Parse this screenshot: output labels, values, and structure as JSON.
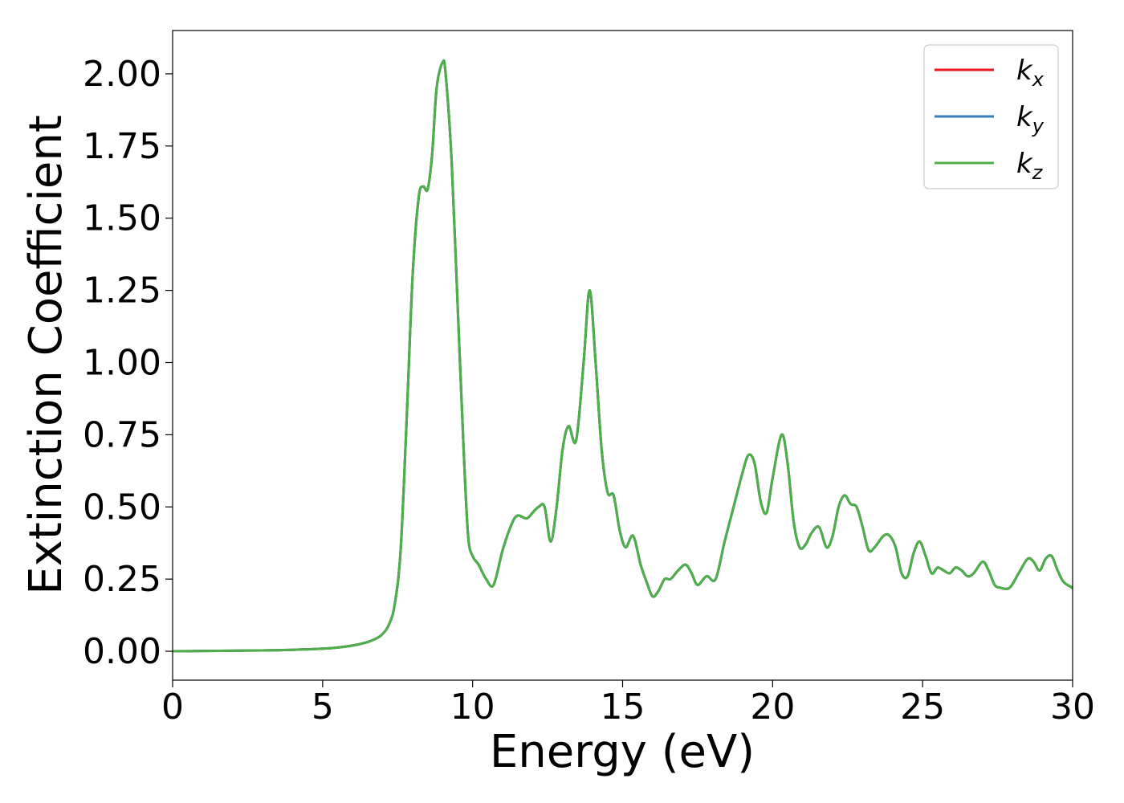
{
  "chart_data": {
    "type": "line",
    "title": "",
    "xlabel": "Energy (eV)",
    "ylabel": "Extinction Coefficient",
    "xlim": [
      0,
      30
    ],
    "ylim": [
      -0.1,
      2.15
    ],
    "xticks": [
      0,
      5,
      10,
      15,
      20,
      25,
      30
    ],
    "xtick_labels": [
      "0",
      "5",
      "10",
      "15",
      "20",
      "25",
      "30"
    ],
    "yticks": [
      0,
      0.25,
      0.5,
      0.75,
      1.0,
      1.25,
      1.5,
      1.75,
      2.0
    ],
    "ytick_labels": [
      "0.00",
      "0.25",
      "0.50",
      "0.75",
      "1.00",
      "1.25",
      "1.50",
      "1.75",
      "2.00"
    ],
    "grid": false,
    "legend_position": "top-right",
    "x": [
      0,
      1,
      2,
      3,
      4,
      5,
      5.5,
      6,
      6.5,
      6.8,
      7.0,
      7.2,
      7.4,
      7.6,
      7.8,
      8.0,
      8.2,
      8.35,
      8.5,
      8.65,
      8.8,
      9.0,
      9.1,
      9.3,
      9.5,
      9.7,
      9.85,
      10.0,
      10.2,
      10.45,
      10.7,
      11.0,
      11.3,
      11.5,
      11.8,
      12.0,
      12.2,
      12.4,
      12.6,
      12.8,
      13.0,
      13.2,
      13.45,
      13.7,
      13.9,
      14.1,
      14.3,
      14.5,
      14.7,
      14.9,
      15.1,
      15.35,
      15.6,
      15.8,
      16.0,
      16.2,
      16.4,
      16.6,
      16.85,
      17.1,
      17.3,
      17.5,
      17.8,
      18.1,
      18.4,
      18.7,
      19.0,
      19.2,
      19.4,
      19.6,
      19.8,
      20.0,
      20.3,
      20.5,
      20.7,
      20.9,
      21.1,
      21.3,
      21.55,
      21.8,
      22.0,
      22.2,
      22.4,
      22.6,
      22.8,
      23.0,
      23.2,
      23.4,
      23.7,
      23.9,
      24.1,
      24.3,
      24.5,
      24.7,
      24.9,
      25.1,
      25.3,
      25.5,
      25.7,
      25.9,
      26.1,
      26.3,
      26.5,
      26.7,
      27.0,
      27.2,
      27.4,
      27.6,
      27.9,
      28.2,
      28.5,
      28.7,
      28.9,
      29.1,
      29.3,
      29.5,
      29.7,
      30.0
    ],
    "series": [
      {
        "name": "k_x",
        "color": "#e41a1c",
        "values": [
          0,
          0.001,
          0.002,
          0.003,
          0.005,
          0.009,
          0.013,
          0.02,
          0.032,
          0.045,
          0.06,
          0.09,
          0.16,
          0.35,
          0.8,
          1.3,
          1.57,
          1.61,
          1.6,
          1.72,
          1.95,
          2.04,
          2.0,
          1.7,
          1.2,
          0.7,
          0.4,
          0.33,
          0.3,
          0.25,
          0.23,
          0.35,
          0.44,
          0.47,
          0.46,
          0.48,
          0.5,
          0.5,
          0.38,
          0.5,
          0.7,
          0.78,
          0.73,
          1.0,
          1.25,
          1.0,
          0.7,
          0.55,
          0.54,
          0.42,
          0.36,
          0.4,
          0.3,
          0.24,
          0.19,
          0.21,
          0.25,
          0.25,
          0.28,
          0.3,
          0.27,
          0.23,
          0.26,
          0.25,
          0.38,
          0.5,
          0.62,
          0.68,
          0.65,
          0.52,
          0.48,
          0.6,
          0.75,
          0.65,
          0.45,
          0.36,
          0.37,
          0.41,
          0.43,
          0.36,
          0.4,
          0.5,
          0.54,
          0.51,
          0.5,
          0.43,
          0.35,
          0.36,
          0.4,
          0.4,
          0.36,
          0.27,
          0.26,
          0.34,
          0.38,
          0.33,
          0.27,
          0.29,
          0.28,
          0.27,
          0.29,
          0.28,
          0.26,
          0.27,
          0.31,
          0.28,
          0.23,
          0.22,
          0.22,
          0.27,
          0.32,
          0.31,
          0.28,
          0.32,
          0.33,
          0.28,
          0.24,
          0.22
        ]
      },
      {
        "name": "k_y",
        "color": "#377eb8",
        "values": [
          0,
          0.001,
          0.002,
          0.003,
          0.005,
          0.009,
          0.013,
          0.02,
          0.032,
          0.045,
          0.06,
          0.09,
          0.16,
          0.35,
          0.8,
          1.3,
          1.57,
          1.61,
          1.6,
          1.72,
          1.95,
          2.04,
          2.0,
          1.7,
          1.2,
          0.7,
          0.4,
          0.33,
          0.3,
          0.25,
          0.23,
          0.35,
          0.44,
          0.47,
          0.46,
          0.48,
          0.5,
          0.5,
          0.38,
          0.5,
          0.7,
          0.78,
          0.73,
          1.0,
          1.25,
          1.0,
          0.7,
          0.55,
          0.54,
          0.42,
          0.36,
          0.4,
          0.3,
          0.24,
          0.19,
          0.21,
          0.25,
          0.25,
          0.28,
          0.3,
          0.27,
          0.23,
          0.26,
          0.25,
          0.38,
          0.5,
          0.62,
          0.68,
          0.65,
          0.52,
          0.48,
          0.6,
          0.75,
          0.65,
          0.45,
          0.36,
          0.37,
          0.41,
          0.43,
          0.36,
          0.4,
          0.5,
          0.54,
          0.51,
          0.5,
          0.43,
          0.35,
          0.36,
          0.4,
          0.4,
          0.36,
          0.27,
          0.26,
          0.34,
          0.38,
          0.33,
          0.27,
          0.29,
          0.28,
          0.27,
          0.29,
          0.28,
          0.26,
          0.27,
          0.31,
          0.28,
          0.23,
          0.22,
          0.22,
          0.27,
          0.32,
          0.31,
          0.28,
          0.32,
          0.33,
          0.28,
          0.24,
          0.22
        ]
      },
      {
        "name": "k_z",
        "color": "#4daf4a",
        "values": [
          0,
          0.001,
          0.002,
          0.003,
          0.005,
          0.009,
          0.013,
          0.02,
          0.032,
          0.045,
          0.06,
          0.09,
          0.16,
          0.35,
          0.8,
          1.3,
          1.57,
          1.61,
          1.6,
          1.72,
          1.95,
          2.04,
          2.0,
          1.7,
          1.2,
          0.7,
          0.4,
          0.33,
          0.3,
          0.25,
          0.23,
          0.35,
          0.44,
          0.47,
          0.46,
          0.48,
          0.5,
          0.5,
          0.38,
          0.5,
          0.7,
          0.78,
          0.73,
          1.0,
          1.25,
          1.0,
          0.7,
          0.55,
          0.54,
          0.42,
          0.36,
          0.4,
          0.3,
          0.24,
          0.19,
          0.21,
          0.25,
          0.25,
          0.28,
          0.3,
          0.27,
          0.23,
          0.26,
          0.25,
          0.38,
          0.5,
          0.62,
          0.68,
          0.65,
          0.52,
          0.48,
          0.6,
          0.75,
          0.65,
          0.45,
          0.36,
          0.37,
          0.41,
          0.43,
          0.36,
          0.4,
          0.5,
          0.54,
          0.51,
          0.5,
          0.43,
          0.35,
          0.36,
          0.4,
          0.4,
          0.36,
          0.27,
          0.26,
          0.34,
          0.38,
          0.33,
          0.27,
          0.29,
          0.28,
          0.27,
          0.29,
          0.28,
          0.26,
          0.27,
          0.31,
          0.28,
          0.23,
          0.22,
          0.22,
          0.27,
          0.32,
          0.31,
          0.28,
          0.32,
          0.33,
          0.28,
          0.24,
          0.22
        ]
      }
    ],
    "legend": [
      {
        "base": "k",
        "sub": "x",
        "color": "#e41a1c"
      },
      {
        "base": "k",
        "sub": "y",
        "color": "#377eb8"
      },
      {
        "base": "k",
        "sub": "z",
        "color": "#4daf4a"
      }
    ]
  }
}
